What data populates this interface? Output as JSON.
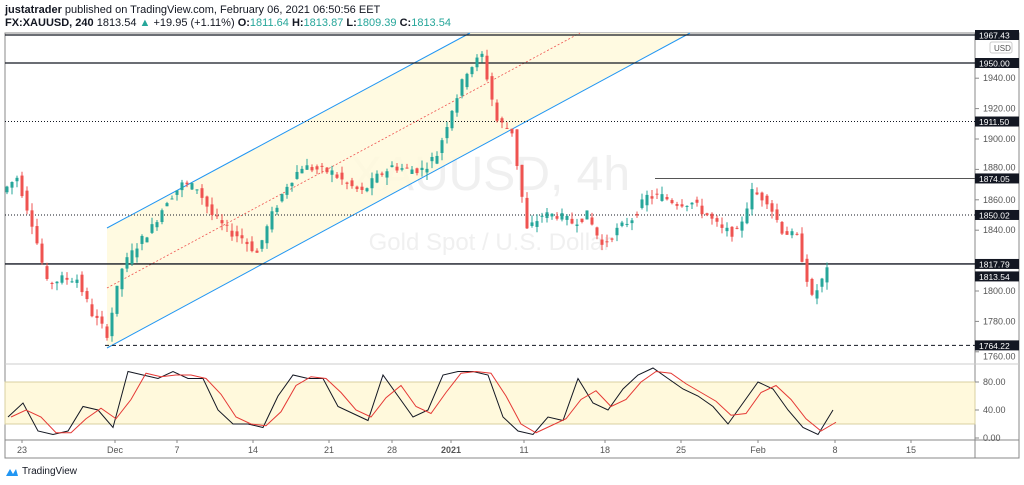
{
  "header": {
    "author": "justatrader",
    "published": "published on TradingView.com, February 06, 2021 06:50:56 EET",
    "symbol": "FX:XAUUSD, 240",
    "last": "1813.54",
    "change": "+19.95 (+1.11%)",
    "o_label": "O:",
    "o": "1811.64",
    "h_label": "H:",
    "h": "1813.87",
    "l_label": "L:",
    "l": "1809.39",
    "c_label": "C:",
    "c": "1813.54"
  },
  "watermark": {
    "symbol": "XAUUSD, 4h",
    "name": "Gold Spot / U.S. Dollar"
  },
  "currency": "USD",
  "logo": "TradingView",
  "colors": {
    "up": "#26a69a",
    "down": "#ef5350",
    "channel": "#2196f3",
    "fill": "#fff9dc",
    "stoch_k": "#131722",
    "stoch_d": "#e53935"
  },
  "chart_data": {
    "type": "candlestick",
    "x_ticks": [
      "23",
      "Dec",
      "7",
      "14",
      "21",
      "28",
      "2021",
      "11",
      "18",
      "25",
      "Feb",
      "8",
      "15"
    ],
    "y_ticks": [
      "1940.00",
      "1920.00",
      "1900.00",
      "1880.00",
      "1860.00",
      "1840.00",
      "1800.00",
      "1780.00",
      "1760.00"
    ],
    "ylim": [
      1757,
      1972
    ],
    "closes": [
      1865,
      1875,
      1845,
      1805,
      1808,
      1808,
      1785,
      1772,
      1815,
      1830,
      1842,
      1860,
      1870,
      1868,
      1850,
      1840,
      1835,
      1825,
      1850,
      1870,
      1882,
      1880,
      1878,
      1870,
      1865,
      1875,
      1882,
      1880,
      1880,
      1890,
      1920,
      1945,
      1955,
      1912,
      1905,
      1840,
      1850,
      1850,
      1845,
      1850,
      1830,
      1840,
      1848,
      1862,
      1862,
      1858,
      1858,
      1850,
      1840,
      1838,
      1865,
      1860,
      1840,
      1835,
      1795,
      1813
    ],
    "price_lines": [
      {
        "label": "1967.43",
        "price": 1967.43,
        "style": "solid"
      },
      {
        "label": "1950.00",
        "price": 1950,
        "style": "solid"
      },
      {
        "label": "1911.50",
        "price": 1911.5,
        "style": "dotted"
      },
      {
        "label": "1874.05",
        "price": 1874.05,
        "style": "thin"
      },
      {
        "label": "1850.02",
        "price": 1850.02,
        "style": "dotted"
      },
      {
        "label": "1817.79",
        "price": 1817.79,
        "style": "solid"
      },
      {
        "label": "1813.54",
        "price": 1813.54,
        "style": "last"
      },
      {
        "label": "1764.22",
        "price": 1764.22,
        "style": "dashed"
      }
    ],
    "oscillator": {
      "y_ticks": [
        "80.00",
        "40.00",
        "0.00"
      ],
      "ylim": [
        0,
        100
      ],
      "band": [
        20,
        80
      ],
      "values": [
        30,
        50,
        10,
        5,
        10,
        45,
        40,
        15,
        95,
        90,
        85,
        95,
        85,
        85,
        40,
        20,
        20,
        15,
        60,
        90,
        85,
        85,
        45,
        35,
        25,
        90,
        60,
        30,
        40,
        90,
        95,
        95,
        90,
        30,
        10,
        5,
        30,
        25,
        85,
        50,
        40,
        70,
        90,
        100,
        85,
        70,
        60,
        45,
        20,
        50,
        80,
        70,
        40,
        15,
        5,
        40
      ]
    }
  }
}
